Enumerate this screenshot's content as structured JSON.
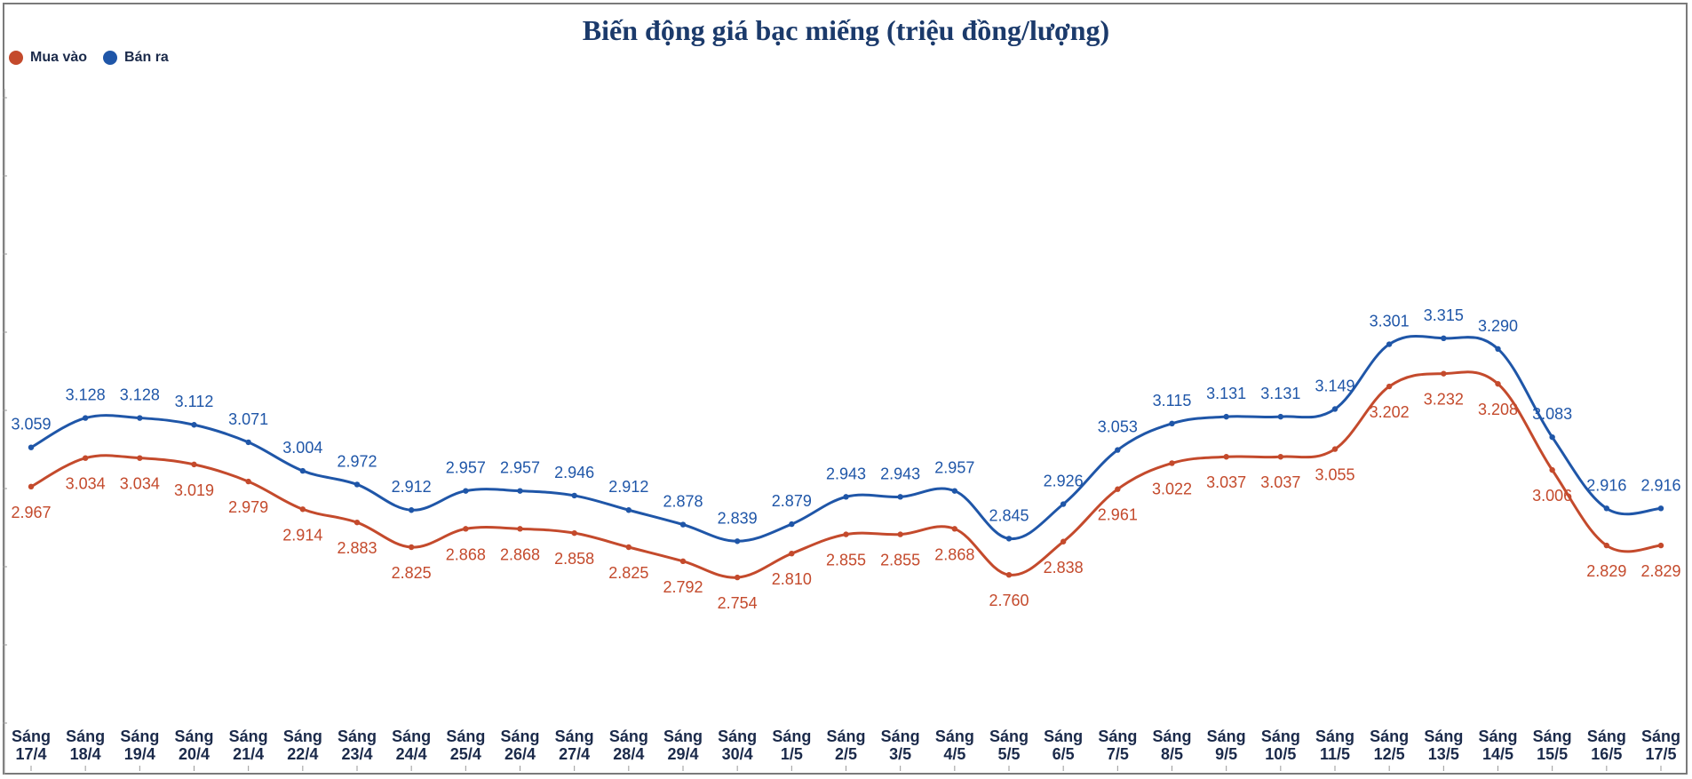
{
  "chart_data": {
    "type": "line",
    "title": "Biến động giá bạc miếng (triệu đồng/lượng)",
    "xlabel": "",
    "ylabel": "",
    "ylim": [
      2.4,
      3.9
    ],
    "grid": false,
    "legend_position": "top-left",
    "x_prefix": "Sáng",
    "categories": [
      "17/4",
      "18/4",
      "19/4",
      "20/4",
      "21/4",
      "22/4",
      "23/4",
      "24/4",
      "25/4",
      "26/4",
      "27/4",
      "28/4",
      "29/4",
      "30/4",
      "1/5",
      "2/5",
      "3/5",
      "4/5",
      "5/5",
      "6/5",
      "7/5",
      "8/5",
      "9/5",
      "10/5",
      "11/5",
      "12/5",
      "13/5",
      "14/5",
      "15/5",
      "16/5",
      "17/5"
    ],
    "series": [
      {
        "name": "Mua vào",
        "color": "#c44a2c",
        "values": [
          2.967,
          3.034,
          3.034,
          3.019,
          2.979,
          2.914,
          2.883,
          2.825,
          2.868,
          2.868,
          2.858,
          2.825,
          2.792,
          2.754,
          2.81,
          2.855,
          2.855,
          2.868,
          2.76,
          2.838,
          2.961,
          3.022,
          3.037,
          3.037,
          3.055,
          3.202,
          3.232,
          3.208,
          3.006,
          2.829,
          2.829
        ],
        "labels": [
          "2.967",
          "3.034",
          "3.034",
          "3.019",
          "2.979",
          "2.914",
          "2.883",
          "2.825",
          "2.868",
          "2.868",
          "2.858",
          "2.825",
          "2.792",
          "2.754",
          "2.810",
          "2.855",
          "2.855",
          "2.868",
          "2.760",
          "2.838",
          "2.961",
          "3.022",
          "3.037",
          "3.037",
          "3.055",
          "3.202",
          "3.232",
          "3.208",
          "3.006",
          "2.829",
          "2.829"
        ]
      },
      {
        "name": "Bán ra",
        "color": "#1f56a8",
        "values": [
          3.059,
          3.128,
          3.128,
          3.112,
          3.071,
          3.004,
          2.972,
          2.912,
          2.957,
          2.957,
          2.946,
          2.912,
          2.878,
          2.839,
          2.879,
          2.943,
          2.943,
          2.957,
          2.845,
          2.926,
          3.053,
          3.115,
          3.131,
          3.131,
          3.149,
          3.301,
          3.315,
          3.29,
          3.083,
          2.916,
          2.916
        ],
        "labels": [
          "3.059",
          "3.128",
          "3.128",
          "3.112",
          "3.071",
          "3.004",
          "2.972",
          "2.912",
          "2.957",
          "2.957",
          "2.946",
          "2.912",
          "2.878",
          "2.839",
          "2.879",
          "2.943",
          "2.943",
          "2.957",
          "2.845",
          "2.926",
          "3.053",
          "3.115",
          "3.131",
          "3.131",
          "3.149",
          "3.301",
          "3.315",
          "3.290",
          "3.083",
          "2.916",
          "2.916"
        ]
      }
    ]
  }
}
